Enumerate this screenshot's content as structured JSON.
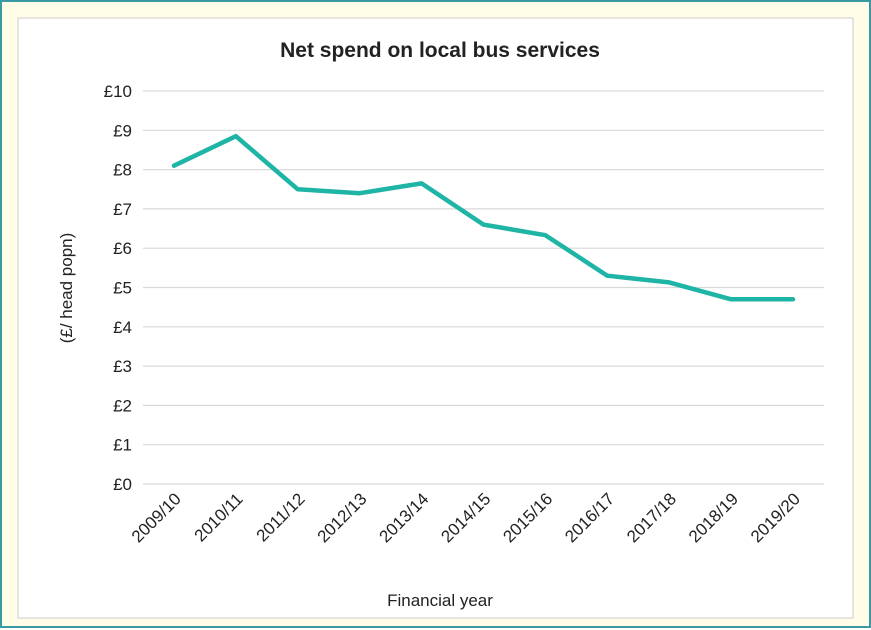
{
  "chart_data": {
    "type": "line",
    "title": "Net spend on local bus services",
    "xlabel": "Financial year",
    "ylabel": "(£/ head popn)",
    "categories": [
      "2009/10",
      "2010/11",
      "2011/12",
      "2012/13",
      "2013/14",
      "2014/15",
      "2015/16",
      "2016/17",
      "2017/18",
      "2018/19",
      "2019/20"
    ],
    "series": [
      {
        "values": [
          8.1,
          8.85,
          7.5,
          7.4,
          7.65,
          6.6,
          6.33,
          5.3,
          5.13,
          4.7,
          4.7
        ]
      }
    ],
    "ylim": [
      0,
      10
    ],
    "yticks": [
      0,
      1,
      2,
      3,
      4,
      5,
      6,
      7,
      8,
      9,
      10
    ],
    "ytick_labels": [
      "£0",
      "£1",
      "£2",
      "£3",
      "£4",
      "£5",
      "£6",
      "£7",
      "£8",
      "£9",
      "£10"
    ],
    "grid": true,
    "line_color": "#1FB5A6",
    "grid_color": "#D9D9D9"
  },
  "colors": {
    "background": "#FFFDE7",
    "border": "#3A9AA4",
    "plot_background": "#FFFFFF"
  }
}
